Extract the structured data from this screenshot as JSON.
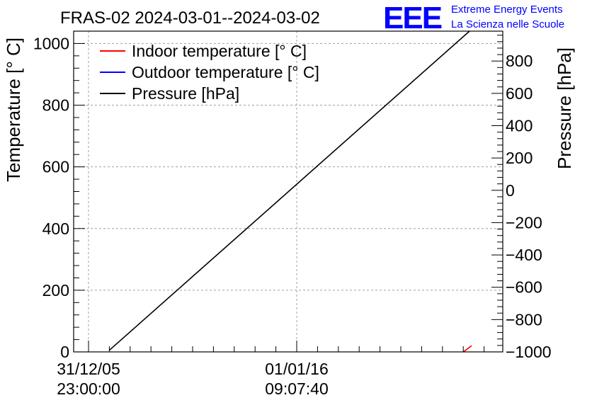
{
  "chart_data": {
    "type": "line",
    "title": "FRAS-02 2024-03-01--2024-03-02",
    "logo_text": "EEE",
    "brand_line1": "Extreme Energy Events",
    "brand_line2": "La Scienza nelle Scuole",
    "brand_color": "#0000ff",
    "ylabel_left": "Temperature [° C]",
    "ylabel_right": "Pressure [hPa]",
    "ylim_left": [
      0,
      1040
    ],
    "ylim_right": [
      -1000,
      985
    ],
    "xlim": [
      0,
      1
    ],
    "left_ticks": [
      0,
      200,
      400,
      600,
      800,
      1000
    ],
    "right_ticks": [
      -1000,
      -800,
      -600,
      -400,
      -200,
      0,
      200,
      400,
      600,
      800
    ],
    "x_ticks": [
      {
        "x": 0.0,
        "line1": "31/12/05",
        "line2": "23:00:00"
      },
      {
        "x": 0.5,
        "line1": "01/01/16",
        "line2": "09:07:40"
      }
    ],
    "grid": true,
    "legend_position": "top-left",
    "series": [
      {
        "name": "Indoor temperature [° C]",
        "color": "#ff0000",
        "axis": "left",
        "points": [
          [
            0.9,
            0
          ],
          [
            0.92,
            20
          ]
        ]
      },
      {
        "name": "Outdoor temperature [° C]",
        "color": "#0000ff",
        "axis": "left",
        "points": []
      },
      {
        "name": "Pressure [hPa]",
        "color": "#000000",
        "axis": "right",
        "points": [
          [
            0.05,
            -990
          ],
          [
            0.915,
            985
          ]
        ]
      }
    ]
  }
}
